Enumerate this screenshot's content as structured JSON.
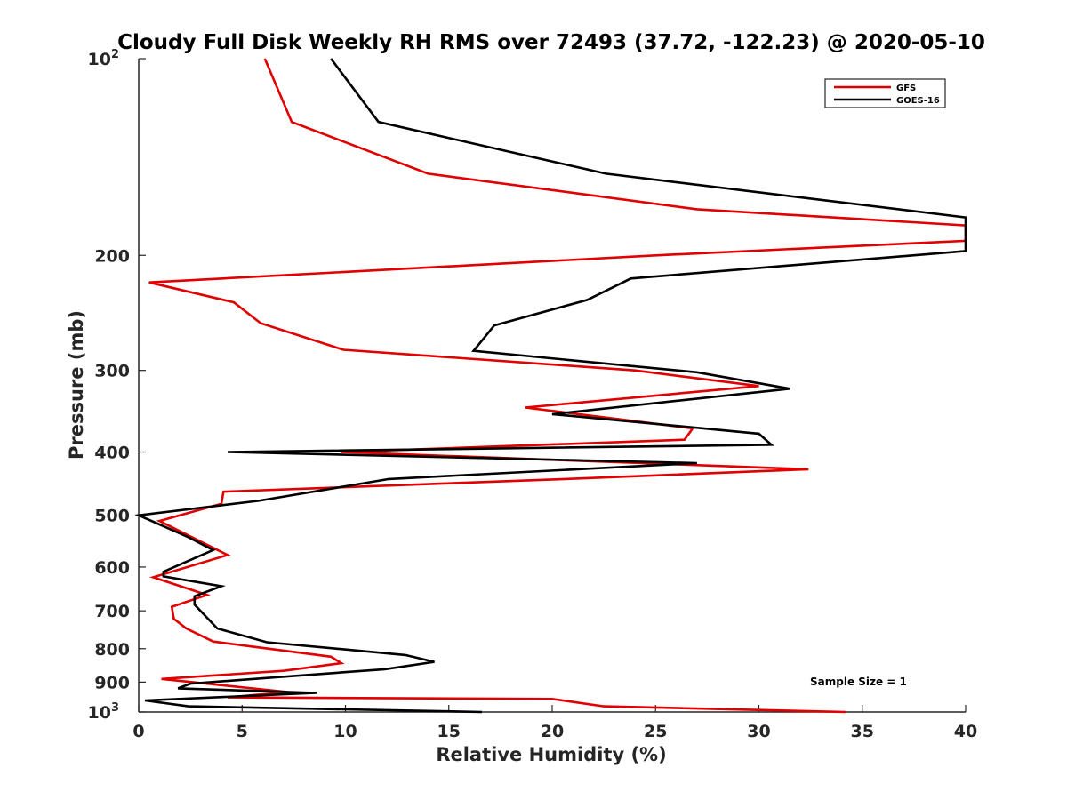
{
  "chart_data": {
    "type": "line",
    "title": "Cloudy Full Disk Weekly RH RMS over 72493 (37.72, -122.23) @ 2020-05-10",
    "xlabel": "Relative Humidity (%)",
    "ylabel": "Pressure (mb)",
    "xlim": [
      0,
      40
    ],
    "ylim": [
      100,
      1000
    ],
    "yscale": "log",
    "yreversed": true,
    "x_ticks": [
      "0",
      "5",
      "10",
      "15",
      "20",
      "25",
      "30",
      "35",
      "40"
    ],
    "y_ticks": [
      {
        "value": 100,
        "label": "10",
        "sup": "2"
      },
      {
        "value": 200,
        "label": "200",
        "sup": ""
      },
      {
        "value": 300,
        "label": "300",
        "sup": ""
      },
      {
        "value": 400,
        "label": "400",
        "sup": ""
      },
      {
        "value": 500,
        "label": "500",
        "sup": ""
      },
      {
        "value": 600,
        "label": "600",
        "sup": ""
      },
      {
        "value": 700,
        "label": "700",
        "sup": ""
      },
      {
        "value": 800,
        "label": "800",
        "sup": ""
      },
      {
        "value": 900,
        "label": "900",
        "sup": ""
      },
      {
        "value": 1000,
        "label": "10",
        "sup": "3"
      }
    ],
    "legend_position": "top-right",
    "annotation": "Sample Size = 1",
    "grid": false,
    "series": [
      {
        "name": "GFS",
        "color": "#e00000",
        "points": [
          [
            6.1,
            100
          ],
          [
            7.4,
            125
          ],
          [
            14.0,
            150
          ],
          [
            27.0,
            170
          ],
          [
            40.0,
            180
          ],
          [
            40.0,
            190
          ],
          [
            25.0,
            200
          ],
          [
            0.5,
            220
          ],
          [
            4.6,
            236
          ],
          [
            5.9,
            254
          ],
          [
            9.9,
            279
          ],
          [
            24.0,
            300
          ],
          [
            30.0,
            317
          ],
          [
            18.7,
            342
          ],
          [
            26.8,
            368
          ],
          [
            26.4,
            383
          ],
          [
            9.8,
            400
          ],
          [
            32.4,
            425
          ],
          [
            20.6,
            440
          ],
          [
            4.1,
            460
          ],
          [
            4.0,
            480
          ],
          [
            1.0,
            510
          ],
          [
            4.3,
            575
          ],
          [
            0.7,
            622
          ],
          [
            3.3,
            662
          ],
          [
            1.6,
            690
          ],
          [
            1.7,
            720
          ],
          [
            2.3,
            745
          ],
          [
            3.6,
            780
          ],
          [
            9.3,
            823
          ],
          [
            9.8,
            842
          ],
          [
            7.0,
            865
          ],
          [
            1.1,
            890
          ],
          [
            7.2,
            932
          ],
          [
            4.3,
            950
          ],
          [
            20.0,
            955
          ],
          [
            22.5,
            980
          ],
          [
            34.2,
            1000
          ]
        ]
      },
      {
        "name": "GOES-16",
        "color": "#000000",
        "points": [
          [
            9.3,
            100
          ],
          [
            11.6,
            125
          ],
          [
            22.6,
            150
          ],
          [
            40.0,
            175
          ],
          [
            40.0,
            197
          ],
          [
            23.8,
            217
          ],
          [
            21.7,
            234
          ],
          [
            17.2,
            256
          ],
          [
            16.2,
            280
          ],
          [
            27.0,
            302
          ],
          [
            31.5,
            320
          ],
          [
            20.0,
            350
          ],
          [
            30.0,
            375
          ],
          [
            30.6,
            390
          ],
          [
            4.3,
            400
          ],
          [
            27.0,
            416
          ],
          [
            12.1,
            440
          ],
          [
            5.8,
            475
          ],
          [
            0.0,
            500
          ],
          [
            2.4,
            540
          ],
          [
            3.6,
            565
          ],
          [
            1.2,
            610
          ],
          [
            1.2,
            620
          ],
          [
            4.0,
            642
          ],
          [
            2.7,
            665
          ],
          [
            2.7,
            685
          ],
          [
            3.8,
            745
          ],
          [
            6.2,
            782
          ],
          [
            12.9,
            818
          ],
          [
            14.3,
            838
          ],
          [
            11.9,
            860
          ],
          [
            2.5,
            905
          ],
          [
            1.9,
            920
          ],
          [
            8.6,
            935
          ],
          [
            0.3,
            960
          ],
          [
            2.4,
            980
          ],
          [
            16.6,
            1000
          ]
        ]
      }
    ]
  }
}
